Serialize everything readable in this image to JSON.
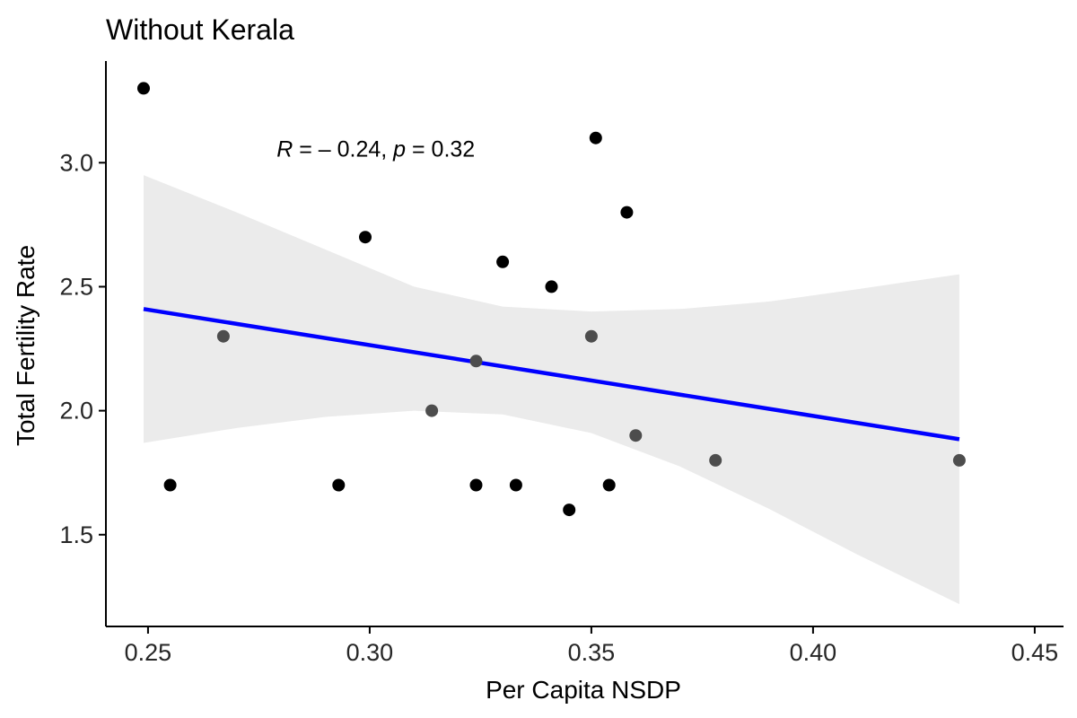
{
  "colors": {
    "background": "#ffffff",
    "point": "#000000",
    "point_in_band": "#4d4d4d",
    "fit_line": "#0000ff",
    "confidence_band": "#ebebeb",
    "axis": "#000000"
  },
  "chart_data": {
    "type": "scatter",
    "title": "Without Kerala",
    "xlabel": "Per Capita NSDP",
    "ylabel": "Total Fertility Rate",
    "xlim": [
      0.2405,
      0.4565
    ],
    "ylim": [
      1.13,
      3.41
    ],
    "x_ticks": [
      0.25,
      0.3,
      0.35,
      0.4,
      0.45
    ],
    "x_tick_labels": [
      "0.25",
      "0.30",
      "0.35",
      "0.40",
      "0.45"
    ],
    "y_ticks": [
      1.5,
      2.0,
      2.5,
      3.0
    ],
    "y_tick_labels": [
      "1.5",
      "2.0",
      "2.5",
      "3.0"
    ],
    "grid": false,
    "legend": "none",
    "points": [
      {
        "x": 0.249,
        "y": 3.3
      },
      {
        "x": 0.255,
        "y": 1.7
      },
      {
        "x": 0.267,
        "y": 2.3
      },
      {
        "x": 0.293,
        "y": 1.7
      },
      {
        "x": 0.299,
        "y": 2.7
      },
      {
        "x": 0.314,
        "y": 2.0
      },
      {
        "x": 0.324,
        "y": 2.2
      },
      {
        "x": 0.324,
        "y": 1.7
      },
      {
        "x": 0.33,
        "y": 2.6
      },
      {
        "x": 0.333,
        "y": 1.7
      },
      {
        "x": 0.341,
        "y": 2.5
      },
      {
        "x": 0.345,
        "y": 1.6
      },
      {
        "x": 0.35,
        "y": 2.3
      },
      {
        "x": 0.351,
        "y": 3.1
      },
      {
        "x": 0.354,
        "y": 1.7
      },
      {
        "x": 0.358,
        "y": 2.8
      },
      {
        "x": 0.36,
        "y": 1.9
      },
      {
        "x": 0.378,
        "y": 1.8
      },
      {
        "x": 0.433,
        "y": 1.8
      }
    ],
    "fit_line": {
      "x": [
        0.249,
        0.433
      ],
      "y": [
        2.41,
        1.885
      ]
    },
    "confidence_band": {
      "x": [
        0.249,
        0.27,
        0.29,
        0.31,
        0.33,
        0.35,
        0.37,
        0.39,
        0.41,
        0.433
      ],
      "lower": [
        1.87,
        1.93,
        1.975,
        2.0,
        1.985,
        1.91,
        1.775,
        1.605,
        1.42,
        1.22
      ],
      "upper": [
        2.95,
        2.8,
        2.65,
        2.5,
        2.42,
        2.4,
        2.41,
        2.44,
        2.49,
        2.55
      ]
    },
    "annotation": {
      "r_symbol": "R",
      "r_value": " = – 0.24, ",
      "p_symbol": "p",
      "p_value": " = 0.32",
      "x": 0.279,
      "y": 3.025
    }
  }
}
